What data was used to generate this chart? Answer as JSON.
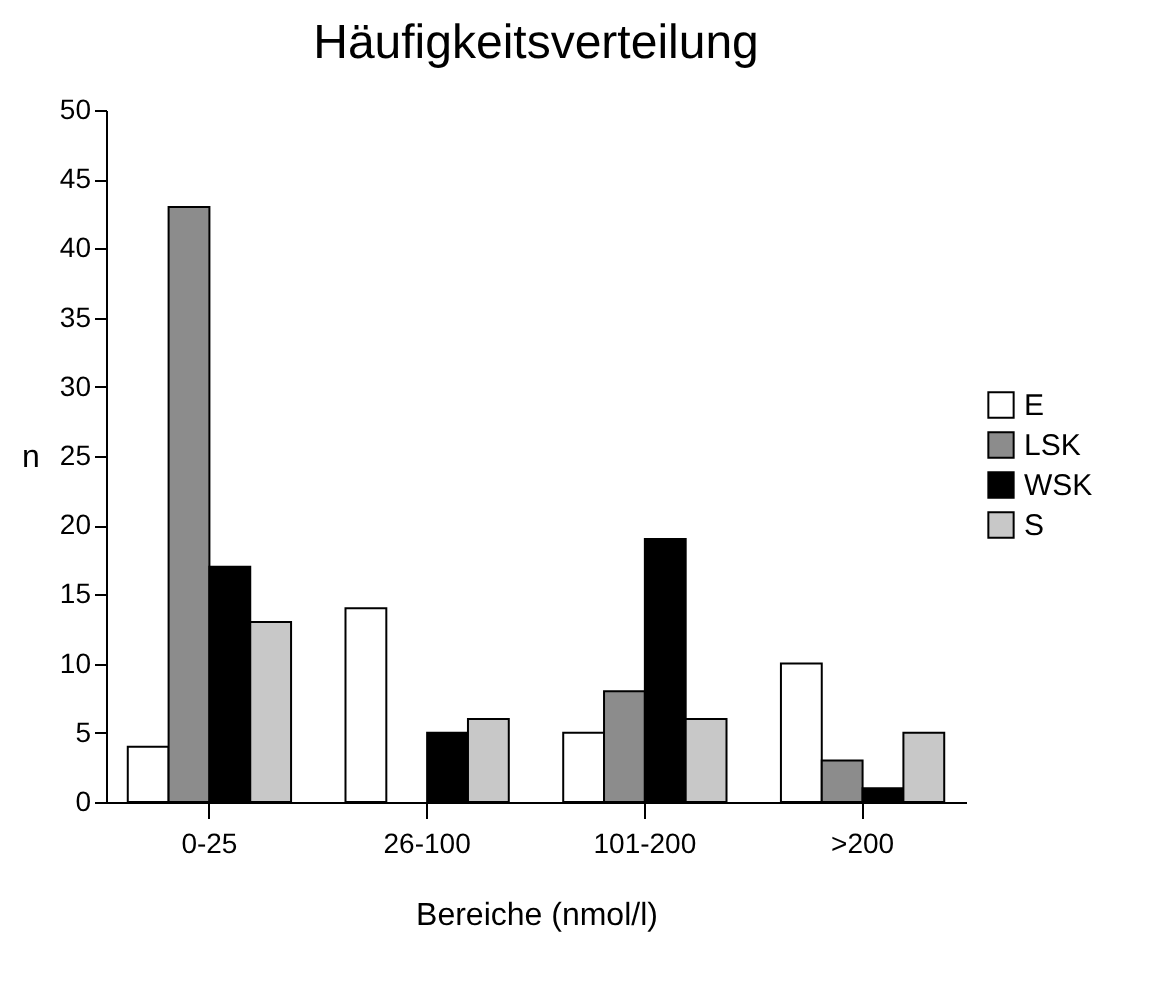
{
  "chart_data": {
    "type": "bar",
    "title": "Häufigkeitsverteilung",
    "xlabel": "Bereiche (nmol/l)",
    "ylabel": "n",
    "categories": [
      "0-25",
      "26-100",
      "101-200",
      ">200"
    ],
    "series": [
      {
        "name": "E",
        "color": "#ffffff",
        "values": [
          4,
          14,
          5,
          10
        ]
      },
      {
        "name": "LSK",
        "color": "#8c8c8c",
        "values": [
          43,
          0,
          8,
          3
        ]
      },
      {
        "name": "WSK",
        "color": "#000000",
        "values": [
          17,
          5,
          19,
          1
        ]
      },
      {
        "name": "S",
        "color": "#c8c8c8",
        "values": [
          13,
          6,
          6,
          5
        ]
      }
    ],
    "ylim": [
      0,
      50
    ],
    "yticks": [
      0,
      5,
      10,
      15,
      20,
      25,
      30,
      35,
      40,
      45,
      50
    ],
    "grid": false,
    "legend": "right"
  }
}
